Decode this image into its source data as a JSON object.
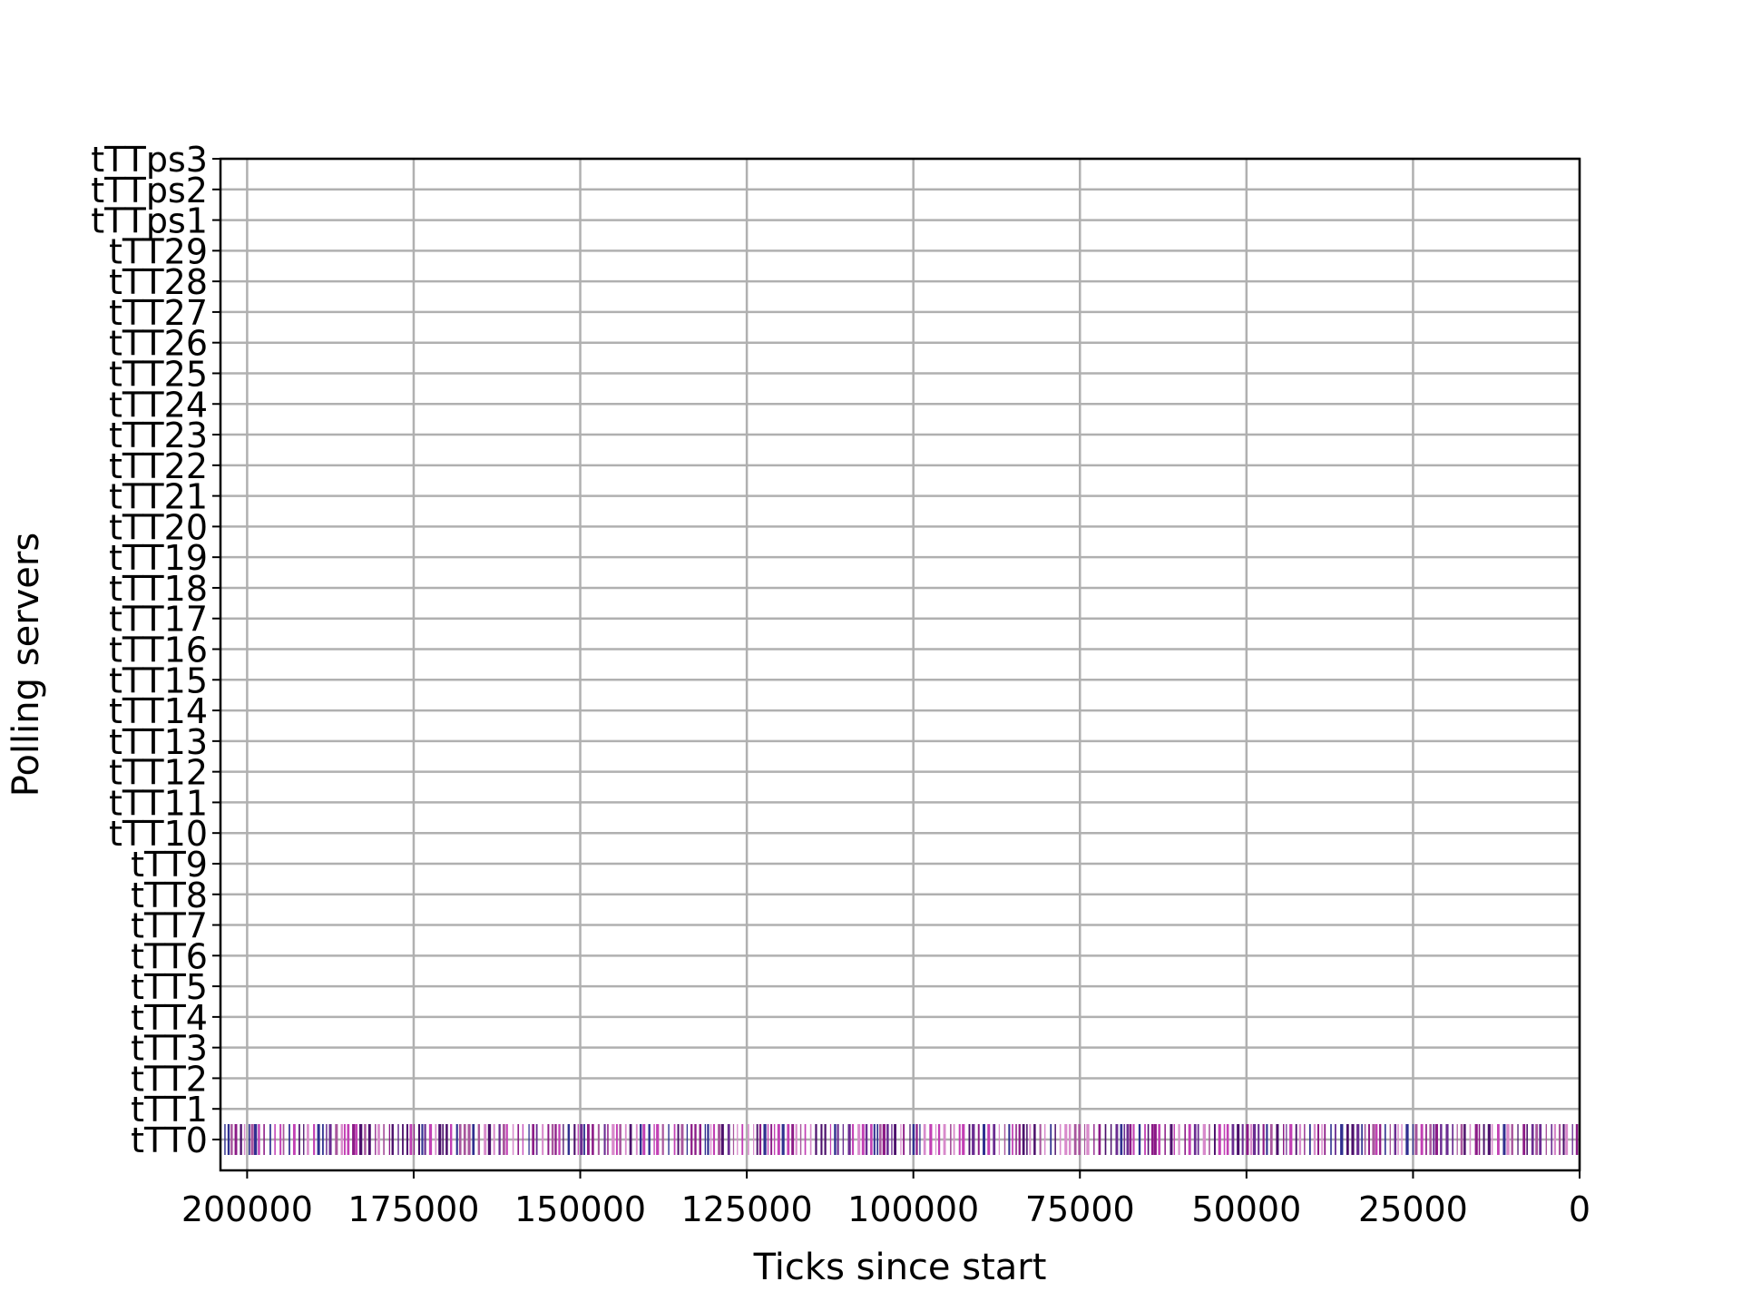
{
  "chart_data": {
    "type": "scatter",
    "title": "",
    "xlabel": "Ticks since start",
    "ylabel": "Polling servers",
    "xlim": [
      204000,
      0
    ],
    "x_inverted": true,
    "x_ticks": [
      200000,
      175000,
      150000,
      125000,
      100000,
      75000,
      50000,
      25000,
      0
    ],
    "x_tick_labels": [
      "200000",
      "175000",
      "150000",
      "125000",
      "100000",
      "75000",
      "50000",
      "25000",
      "0"
    ],
    "categories": [
      "tTT0",
      "tTT1",
      "tTT2",
      "tTT3",
      "tTT4",
      "tTT5",
      "tTT6",
      "tTT7",
      "tTT8",
      "tTT9",
      "tTT10",
      "tTT11",
      "tTT12",
      "tTT13",
      "tTT14",
      "tTT15",
      "tTT16",
      "tTT17",
      "tTT18",
      "tTT19",
      "tTT20",
      "tTT21",
      "tTT22",
      "tTT23",
      "tTT24",
      "tTT25",
      "tTT26",
      "tTT27",
      "tTT28",
      "tTT29",
      "tTTps1",
      "tTTps2",
      "tTTps3"
    ],
    "grid": true,
    "legend": "none",
    "marker": "vertical-tick",
    "active_category": "tTT0",
    "event_x_range": [
      0,
      204000
    ],
    "event_colors": [
      "#4b0f6b",
      "#8b1a86",
      "#c23fb4",
      "#2f2f8f",
      "#d88acb",
      "#6a2c91",
      "#a8569d"
    ],
    "colors": {
      "grid": "#b0b0b0",
      "axis": "#000000",
      "background": "#ffffff"
    }
  }
}
